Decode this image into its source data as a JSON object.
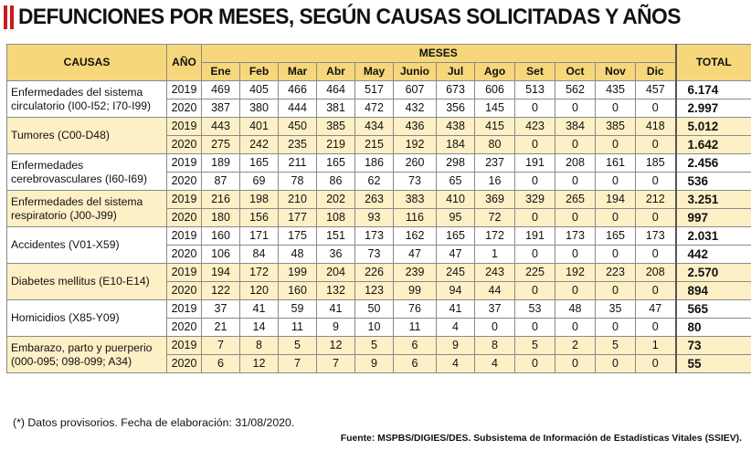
{
  "title": "DEFUNCIONES POR MESES, SEGÚN CAUSAS SOLICITADAS Y AÑOS",
  "header": {
    "causas": "CAUSAS",
    "anio": "AÑO",
    "meses": "MESES",
    "total": "TOTAL",
    "months": [
      "Ene",
      "Feb",
      "Mar",
      "Abr",
      "May",
      "Junio",
      "Jul",
      "Ago",
      "Set",
      "Oct",
      "Nov",
      "Dic"
    ]
  },
  "rows": [
    {
      "cause": "Enfermedades del sistema circulatorio (I00-I52; I70-I99)",
      "years": [
        {
          "year": "2019",
          "values": [
            "469",
            "405",
            "466",
            "464",
            "517",
            "607",
            "673",
            "606",
            "513",
            "562",
            "435",
            "457"
          ],
          "total": "6.174"
        },
        {
          "year": "2020",
          "values": [
            "387",
            "380",
            "444",
            "381",
            "472",
            "432",
            "356",
            "145",
            "0",
            "0",
            "0",
            "0"
          ],
          "total": "2.997"
        }
      ]
    },
    {
      "cause": "Tumores (C00-D48)",
      "years": [
        {
          "year": "2019",
          "values": [
            "443",
            "401",
            "450",
            "385",
            "434",
            "436",
            "438",
            "415",
            "423",
            "384",
            "385",
            "418"
          ],
          "total": "5.012"
        },
        {
          "year": "2020",
          "values": [
            "275",
            "242",
            "235",
            "219",
            "215",
            "192",
            "184",
            "80",
            "0",
            "0",
            "0",
            "0"
          ],
          "total": "1.642"
        }
      ]
    },
    {
      "cause": "Enfermedades cerebrovasculares (I60-I69)",
      "years": [
        {
          "year": "2019",
          "values": [
            "189",
            "165",
            "211",
            "165",
            "186",
            "260",
            "298",
            "237",
            "191",
            "208",
            "161",
            "185"
          ],
          "total": "2.456"
        },
        {
          "year": "2020",
          "values": [
            "87",
            "69",
            "78",
            "86",
            "62",
            "73",
            "65",
            "16",
            "0",
            "0",
            "0",
            "0"
          ],
          "total": "536"
        }
      ]
    },
    {
      "cause": "Enfermedades del sistema respiratorio (J00-J99)",
      "years": [
        {
          "year": "2019",
          "values": [
            "216",
            "198",
            "210",
            "202",
            "263",
            "383",
            "410",
            "369",
            "329",
            "265",
            "194",
            "212"
          ],
          "total": "3.251"
        },
        {
          "year": "2020",
          "values": [
            "180",
            "156",
            "177",
            "108",
            "93",
            "116",
            "95",
            "72",
            "0",
            "0",
            "0",
            "0"
          ],
          "total": "997"
        }
      ]
    },
    {
      "cause": "Accidentes (V01-X59)",
      "years": [
        {
          "year": "2019",
          "values": [
            "160",
            "171",
            "175",
            "151",
            "173",
            "162",
            "165",
            "172",
            "191",
            "173",
            "165",
            "173"
          ],
          "total": "2.031"
        },
        {
          "year": "2020",
          "values": [
            "106",
            "84",
            "48",
            "36",
            "73",
            "47",
            "47",
            "1",
            "0",
            "0",
            "0",
            "0"
          ],
          "total": "442"
        }
      ]
    },
    {
      "cause": "Diabetes mellitus (E10-E14)",
      "years": [
        {
          "year": "2019",
          "values": [
            "194",
            "172",
            "199",
            "204",
            "226",
            "239",
            "245",
            "243",
            "225",
            "192",
            "223",
            "208"
          ],
          "total": "2.570"
        },
        {
          "year": "2020",
          "values": [
            "122",
            "120",
            "160",
            "132",
            "123",
            "99",
            "94",
            "44",
            "0",
            "0",
            "0",
            "0"
          ],
          "total": "894"
        }
      ]
    },
    {
      "cause": "Homicidios (X85-Y09)",
      "years": [
        {
          "year": "2019",
          "values": [
            "37",
            "41",
            "59",
            "41",
            "50",
            "76",
            "41",
            "37",
            "53",
            "48",
            "35",
            "47"
          ],
          "total": "565"
        },
        {
          "year": "2020",
          "values": [
            "21",
            "14",
            "11",
            "9",
            "10",
            "11",
            "4",
            "0",
            "0",
            "0",
            "0",
            "0"
          ],
          "total": "80"
        }
      ]
    },
    {
      "cause": "Embarazo, parto y puerperio (000-095; 098-099; A34)",
      "years": [
        {
          "year": "2019",
          "values": [
            "7",
            "8",
            "5",
            "12",
            "5",
            "6",
            "9",
            "8",
            "5",
            "2",
            "5",
            "1"
          ],
          "total": "73"
        },
        {
          "year": "2020",
          "values": [
            "6",
            "12",
            "7",
            "7",
            "9",
            "6",
            "4",
            "4",
            "0",
            "0",
            "0",
            "0"
          ],
          "total": "55"
        }
      ]
    }
  ],
  "footnote": "(*) Datos provisorios. Fecha de elaboración: 31/08/2020.",
  "source": "Fuente: MSPBS/DIGIES/DES. Subsistema de Información de Estadísticas Vitales (SSIEV).",
  "colors": {
    "accent": "#c81e1e",
    "header_bg": "#f7d77b",
    "zebra_bg": "#fdf0c6"
  }
}
